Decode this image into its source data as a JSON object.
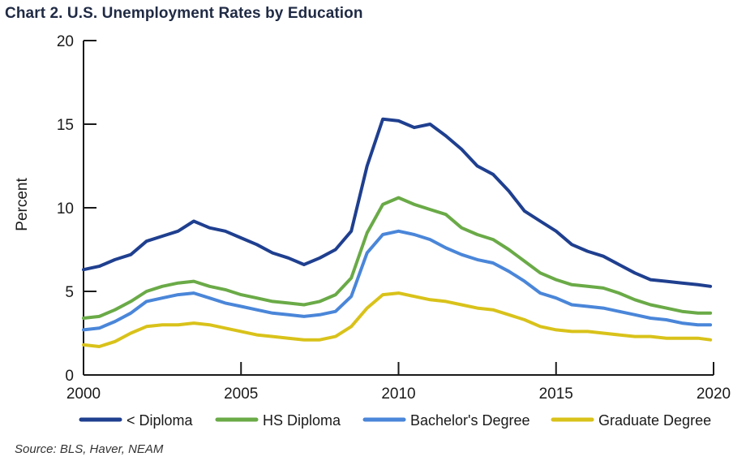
{
  "title": "Chart 2. U.S. Unemployment Rates by Education",
  "source": "Source: BLS, Haver, NEAM",
  "chart_data": {
    "type": "line",
    "title": "Chart 2. U.S. Unemployment Rates by Education",
    "ylabel": "Percent",
    "xlabel": "",
    "xlim": [
      2000,
      2020
    ],
    "ylim": [
      0,
      20
    ],
    "xticks": [
      "2000",
      "2005",
      "2010",
      "2015",
      "2020"
    ],
    "yticks": [
      "0",
      "5",
      "10",
      "15",
      "20"
    ],
    "grid": false,
    "legend_position": "bottom",
    "series": [
      {
        "name": "< Diploma",
        "color": "#1f3f8f",
        "x": [
          2000.0,
          2000.5,
          2001.0,
          2001.5,
          2002.0,
          2002.5,
          2003.0,
          2003.5,
          2004.0,
          2004.5,
          2005.0,
          2005.5,
          2006.0,
          2006.5,
          2007.0,
          2007.5,
          2008.0,
          2008.5,
          2009.0,
          2009.5,
          2010.0,
          2010.5,
          2011.0,
          2011.5,
          2012.0,
          2012.5,
          2013.0,
          2013.5,
          2014.0,
          2014.5,
          2015.0,
          2015.5,
          2016.0,
          2016.5,
          2017.0,
          2017.5,
          2018.0,
          2018.5,
          2019.0,
          2019.5,
          2019.9
        ],
        "values": [
          6.3,
          6.5,
          6.9,
          7.2,
          8.0,
          8.3,
          8.6,
          9.2,
          8.8,
          8.6,
          8.2,
          7.8,
          7.3,
          7.0,
          6.6,
          7.0,
          7.5,
          8.6,
          12.5,
          15.3,
          15.2,
          14.8,
          15.0,
          14.3,
          13.5,
          12.5,
          12.0,
          11.0,
          9.8,
          9.2,
          8.6,
          7.8,
          7.4,
          7.1,
          6.6,
          6.1,
          5.7,
          5.6,
          5.5,
          5.4,
          5.3
        ]
      },
      {
        "name": "HS Diploma",
        "color": "#6aaa47",
        "x": [
          2000.0,
          2000.5,
          2001.0,
          2001.5,
          2002.0,
          2002.5,
          2003.0,
          2003.5,
          2004.0,
          2004.5,
          2005.0,
          2005.5,
          2006.0,
          2006.5,
          2007.0,
          2007.5,
          2008.0,
          2008.5,
          2009.0,
          2009.5,
          2010.0,
          2010.5,
          2011.0,
          2011.5,
          2012.0,
          2012.5,
          2013.0,
          2013.5,
          2014.0,
          2014.5,
          2015.0,
          2015.5,
          2016.0,
          2016.5,
          2017.0,
          2017.5,
          2018.0,
          2018.5,
          2019.0,
          2019.5,
          2019.9
        ],
        "values": [
          3.4,
          3.5,
          3.9,
          4.4,
          5.0,
          5.3,
          5.5,
          5.6,
          5.3,
          5.1,
          4.8,
          4.6,
          4.4,
          4.3,
          4.2,
          4.4,
          4.8,
          5.8,
          8.5,
          10.2,
          10.6,
          10.2,
          9.9,
          9.6,
          8.8,
          8.4,
          8.1,
          7.5,
          6.8,
          6.1,
          5.7,
          5.4,
          5.3,
          5.2,
          4.9,
          4.5,
          4.2,
          4.0,
          3.8,
          3.7,
          3.7
        ]
      },
      {
        "name": "Bachelor's Degree",
        "color": "#4a86d9",
        "x": [
          2000.0,
          2000.5,
          2001.0,
          2001.5,
          2002.0,
          2002.5,
          2003.0,
          2003.5,
          2004.0,
          2004.5,
          2005.0,
          2005.5,
          2006.0,
          2006.5,
          2007.0,
          2007.5,
          2008.0,
          2008.5,
          2009.0,
          2009.5,
          2010.0,
          2010.5,
          2011.0,
          2011.5,
          2012.0,
          2012.5,
          2013.0,
          2013.5,
          2014.0,
          2014.5,
          2015.0,
          2015.5,
          2016.0,
          2016.5,
          2017.0,
          2017.5,
          2018.0,
          2018.5,
          2019.0,
          2019.5,
          2019.9
        ],
        "values": [
          2.7,
          2.8,
          3.2,
          3.7,
          4.4,
          4.6,
          4.8,
          4.9,
          4.6,
          4.3,
          4.1,
          3.9,
          3.7,
          3.6,
          3.5,
          3.6,
          3.8,
          4.7,
          7.3,
          8.4,
          8.6,
          8.4,
          8.1,
          7.6,
          7.2,
          6.9,
          6.7,
          6.2,
          5.6,
          4.9,
          4.6,
          4.2,
          4.1,
          4.0,
          3.8,
          3.6,
          3.4,
          3.3,
          3.1,
          3.0,
          3.0
        ]
      },
      {
        "name": "Graduate Degree",
        "color": "#d9c21a",
        "x": [
          2000.0,
          2000.5,
          2001.0,
          2001.5,
          2002.0,
          2002.5,
          2003.0,
          2003.5,
          2004.0,
          2004.5,
          2005.0,
          2005.5,
          2006.0,
          2006.5,
          2007.0,
          2007.5,
          2008.0,
          2008.5,
          2009.0,
          2009.5,
          2010.0,
          2010.5,
          2011.0,
          2011.5,
          2012.0,
          2012.5,
          2013.0,
          2013.5,
          2014.0,
          2014.5,
          2015.0,
          2015.5,
          2016.0,
          2016.5,
          2017.0,
          2017.5,
          2018.0,
          2018.5,
          2019.0,
          2019.5,
          2019.9
        ],
        "values": [
          1.8,
          1.7,
          2.0,
          2.5,
          2.9,
          3.0,
          3.0,
          3.1,
          3.0,
          2.8,
          2.6,
          2.4,
          2.3,
          2.2,
          2.1,
          2.1,
          2.3,
          2.9,
          4.0,
          4.8,
          4.9,
          4.7,
          4.5,
          4.4,
          4.2,
          4.0,
          3.9,
          3.6,
          3.3,
          2.9,
          2.7,
          2.6,
          2.6,
          2.5,
          2.4,
          2.3,
          2.3,
          2.2,
          2.2,
          2.2,
          2.1
        ]
      }
    ]
  }
}
